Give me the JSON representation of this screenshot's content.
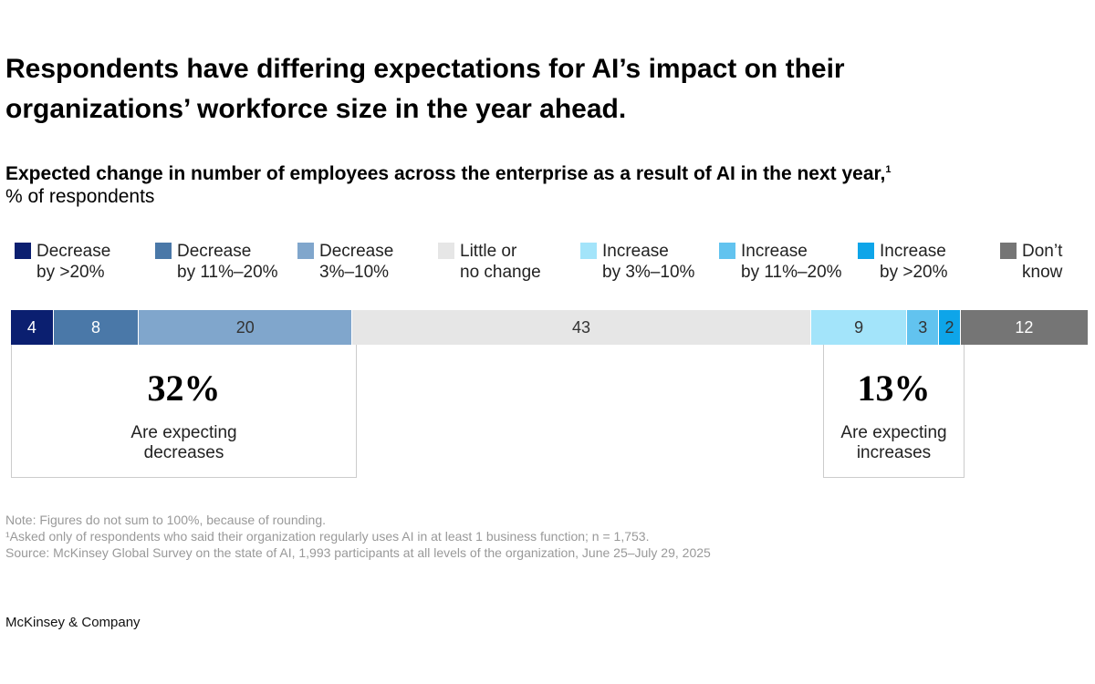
{
  "title": "Respondents have differing expectations for AI’s impact on their organizations’ workforce size in the year ahead.",
  "subtitle": "Expected change in number of employees across the enterprise as a result of AI in the next year,",
  "subtitle_footnote": "1",
  "unit": "% of respondents",
  "chart_data": {
    "type": "bar",
    "orientation": "horizontal-stacked",
    "categories": [
      "Decrease\nby >20%",
      "Decrease\nby 11%–20%",
      "Decrease\n3%–10%",
      "Little or\nno change",
      "Increase\nby 3%–10%",
      "Increase\nby 11%–20%",
      "Increase\nby >20%",
      "Don’t\nknow"
    ],
    "values": [
      4,
      8,
      20,
      43,
      9,
      3,
      2,
      12
    ],
    "labels": [
      "4",
      "8",
      "20",
      "43",
      "9",
      "3",
      "2",
      "12"
    ],
    "colors": [
      "#0b1f70",
      "#4a78a8",
      "#80a6cc",
      "#e6e6e6",
      "#a3e4fa",
      "#62c3ef",
      "#0ea5e9",
      "#757575"
    ],
    "label_colors": [
      "#ffffff",
      "#ffffff",
      "#333333",
      "#333333",
      "#333333",
      "#333333",
      "#333333",
      "#ffffff"
    ],
    "legend_position": "top",
    "grid": false
  },
  "callouts": [
    {
      "value": "32%",
      "label": "Are expecting\ndecreases"
    },
    {
      "value": "13%",
      "label": "Are expecting\nincreases"
    }
  ],
  "notes": [
    "Note: Figures do not sum to 100%, because of rounding.",
    "¹Asked only of respondents who said their organization regularly uses AI in at least 1 business function; n = 1,753.",
    " Source: McKinsey Global Survey on the state of AI, 1,993 participants at all levels of the organization, June 25–July 29, 2025"
  ],
  "brand": "McKinsey & Company"
}
